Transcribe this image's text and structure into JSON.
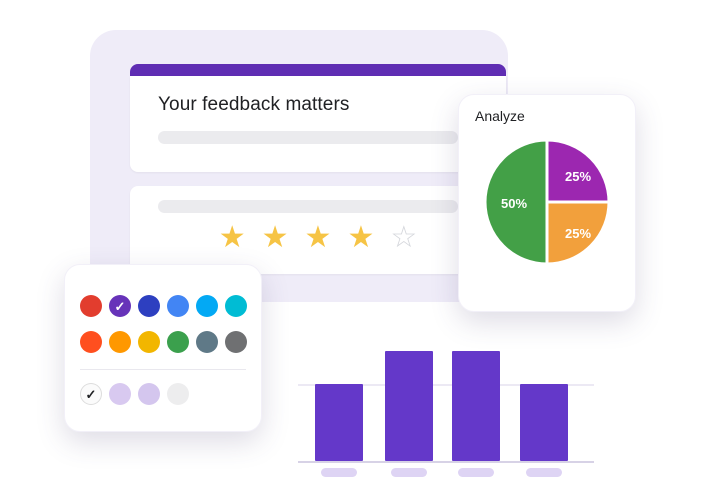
{
  "colors": {
    "accent_purple": "#5f2db3",
    "panel_lavender": "#efecf8",
    "bar_purple": "#6438c9",
    "star_gold": "#f6c445",
    "star_outline": "#d5d7dc"
  },
  "form": {
    "title": "Your feedback matters"
  },
  "rating": {
    "stars": [
      {
        "type": "filled",
        "glyph": "★"
      },
      {
        "type": "filled",
        "glyph": "★"
      },
      {
        "type": "filled",
        "glyph": "★"
      },
      {
        "type": "filled",
        "glyph": "★"
      },
      {
        "type": "outline",
        "glyph": "☆"
      }
    ]
  },
  "analyze_card": {
    "title": "Analyze"
  },
  "chart_data": [
    {
      "type": "pie",
      "title": "Analyze",
      "slices": [
        {
          "label": "50%",
          "value": 50,
          "color": "#43a047"
        },
        {
          "label": "25%",
          "value": 25,
          "color": "#9c27b0"
        },
        {
          "label": "25%",
          "value": 25,
          "color": "#f2a03c"
        }
      ],
      "legend_position": "none"
    },
    {
      "type": "bar",
      "categories": [
        "",
        "",
        "",
        ""
      ],
      "values": [
        7,
        10,
        10,
        7
      ],
      "ylim": [
        0,
        10
      ],
      "bar_color": "#6438c9",
      "grid": true,
      "title": "",
      "xlabel": "",
      "ylabel": ""
    }
  ],
  "color_picker": {
    "check_glyph": "✓",
    "rows": [
      [
        {
          "name": "red",
          "hex": "#e23d2e"
        },
        {
          "name": "purple",
          "hex": "#6733b9",
          "selected": true,
          "check_color": "#ffffff"
        },
        {
          "name": "indigo",
          "hex": "#2d3fc0"
        },
        {
          "name": "blue",
          "hex": "#4285f4"
        },
        {
          "name": "light-blue",
          "hex": "#03a9f4"
        },
        {
          "name": "cyan",
          "hex": "#00bcd4"
        }
      ],
      [
        {
          "name": "deep-orange",
          "hex": "#ff4f1f"
        },
        {
          "name": "orange",
          "hex": "#ff9800"
        },
        {
          "name": "yellow",
          "hex": "#f2b600"
        },
        {
          "name": "green",
          "hex": "#3ba04d"
        },
        {
          "name": "blue-gray",
          "hex": "#5f7987"
        },
        {
          "name": "gray",
          "hex": "#6f7072"
        }
      ],
      [
        {
          "name": "white",
          "hex": "#fbfbfb",
          "selected": true,
          "check_color": "#202124",
          "border": "#dddddd"
        },
        {
          "name": "light-purple",
          "hex": "#d8c9f0"
        },
        {
          "name": "lighter-purple",
          "hex": "#d4c6ee"
        },
        {
          "name": "light-gray",
          "hex": "#ededee"
        }
      ]
    ]
  }
}
